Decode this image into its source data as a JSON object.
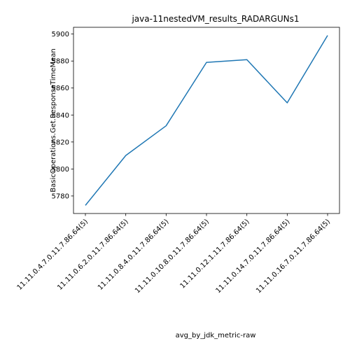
{
  "chart_data": {
    "type": "line",
    "title": "java-11nestedVM_results_RADARGUNs1",
    "xlabel": "avg_by_jdk_metric-raw",
    "ylabel": "BasicOperations.Get.ResponseTimeMean",
    "categories": [
      "11.11.0.4.7.0.11.7.86.64(5)",
      "11.11.0.6.2.0.11.7.86.64(5)",
      "11.11.0.8.4.0.11.7.86.64(5)",
      "11.11.0.10.8.0.11.7.86.64(5)",
      "11.11.0.12.1.11.7.86.64(5)",
      "11.11.0.14.7.0.11.7.86.64(5)",
      "11.11.0.16.7.0.11.7.86.64(5)"
    ],
    "series": [
      {
        "values": [
          5773,
          5810,
          5832,
          5879,
          5881,
          5849,
          5899
        ]
      }
    ],
    "ylim": [
      5767,
      5905
    ],
    "yticks": [
      5780,
      5800,
      5820,
      5840,
      5860,
      5880,
      5900
    ],
    "grid": false,
    "legend": "none",
    "line_color": "#1f77b4"
  }
}
